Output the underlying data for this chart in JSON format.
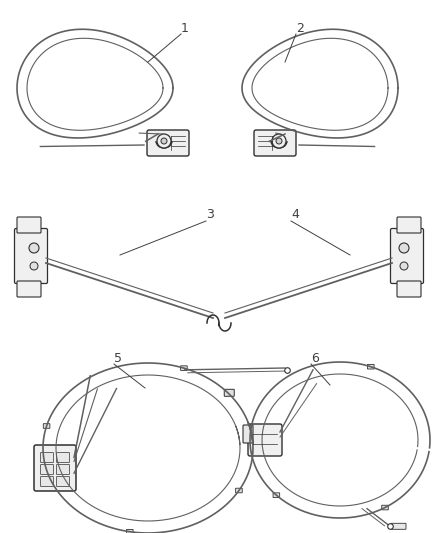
{
  "bg_color": "#ffffff",
  "lc": "#606060",
  "dc": "#303030",
  "label_color": "#404040",
  "figsize": [
    4.38,
    5.33
  ],
  "dpi": 100
}
